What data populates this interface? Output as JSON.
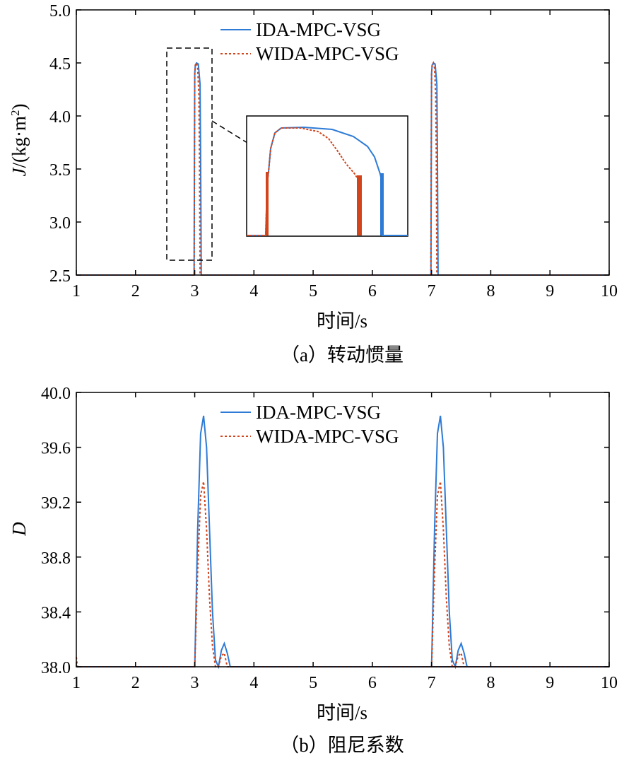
{
  "chart_data": [
    {
      "type": "line",
      "caption": "（a）转动惯量",
      "xlabel": "时间/s",
      "ylabel_italic": "J",
      "ylabel_rest": "/(kg·m",
      "ylabel_sup": "2",
      "ylabel_close": ")",
      "xlim": [
        1,
        10
      ],
      "ylim": [
        2.5,
        5.0
      ],
      "xticks": [
        "1",
        "2",
        "3",
        "4",
        "5",
        "6",
        "7",
        "8",
        "9",
        "10"
      ],
      "yticks": [
        "2.5",
        "3.0",
        "3.5",
        "4.0",
        "4.5",
        "5.0"
      ],
      "legend_position": "top-center",
      "inset": "zoom of first pulse near t=3 s",
      "series": [
        {
          "name": "IDA-MPC-VSG",
          "color": "#2e7bd6",
          "style": "solid",
          "x": [
            1.0,
            2.99,
            2.995,
            3.0,
            3.01,
            3.03,
            3.06,
            3.09,
            3.1,
            3.105,
            3.11,
            10.0
          ],
          "y": [
            2.5,
            2.5,
            3.5,
            4.4,
            4.48,
            4.5,
            4.49,
            4.3,
            3.6,
            3.0,
            2.5,
            2.5
          ]
        },
        {
          "name": "WIDA-MPC-VSG",
          "color": "#d2441b",
          "style": "dotted",
          "x": [
            1.0,
            2.99,
            2.995,
            3.0,
            3.01,
            3.03,
            3.05,
            3.07,
            3.08,
            3.085,
            3.09,
            10.0
          ],
          "y": [
            2.5,
            2.5,
            3.5,
            4.4,
            4.48,
            4.5,
            4.45,
            4.2,
            3.6,
            3.0,
            2.5,
            2.5
          ]
        }
      ]
    },
    {
      "type": "line",
      "caption": "（b）阻尼系数",
      "xlabel": "时间/s",
      "ylabel_italic": "D",
      "xlim": [
        1,
        10
      ],
      "ylim": [
        38.0,
        40.0
      ],
      "xticks": [
        "1",
        "2",
        "3",
        "4",
        "5",
        "6",
        "7",
        "8",
        "9",
        "10"
      ],
      "yticks": [
        "38.0",
        "38.4",
        "38.8",
        "39.2",
        "39.6",
        "40.0"
      ],
      "legend_position": "top-center",
      "series": [
        {
          "name": "IDA-MPC-VSG",
          "color": "#2e7bd6",
          "style": "solid",
          "x": [
            1.0,
            3.0,
            3.05,
            3.1,
            3.15,
            3.2,
            3.25,
            3.3,
            3.35,
            3.4,
            3.45,
            3.5,
            3.55,
            3.6,
            10.0
          ],
          "y": [
            38.0,
            38.0,
            39.0,
            39.7,
            39.83,
            39.6,
            39.0,
            38.4,
            38.05,
            38.0,
            38.12,
            38.17,
            38.1,
            38.0,
            38.0
          ]
        },
        {
          "name": "WIDA-MPC-VSG",
          "color": "#d2441b",
          "style": "dotted",
          "x": [
            1.0,
            1.02,
            3.0,
            3.05,
            3.1,
            3.15,
            3.2,
            3.25,
            3.3,
            3.35,
            3.4,
            3.45,
            3.5,
            3.55,
            10.0
          ],
          "y": [
            38.07,
            38.0,
            38.0,
            38.7,
            39.25,
            39.35,
            39.0,
            38.5,
            38.15,
            38.0,
            38.0,
            38.08,
            38.1,
            38.0,
            38.0
          ]
        }
      ]
    }
  ]
}
